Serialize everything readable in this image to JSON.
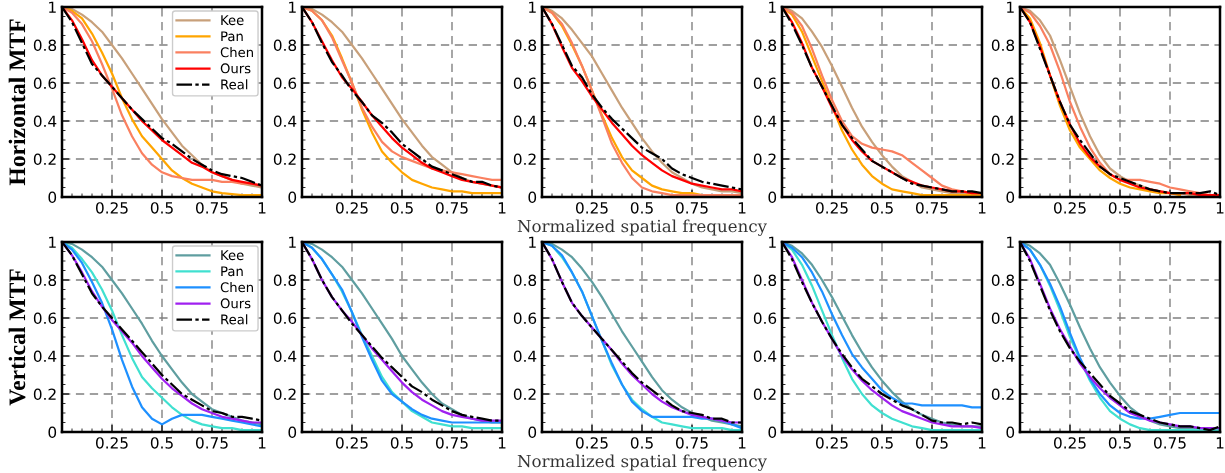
{
  "chart_data": [
    {
      "type": "line",
      "ylabel": "Horizontal MTF",
      "legend": "top right",
      "grid": true,
      "xlim": [
        0,
        1
      ],
      "ylim": [
        0,
        1
      ],
      "xticks": [
        0.25,
        0.5,
        0.75,
        1
      ],
      "yticks": [
        0,
        0.2,
        0.4,
        0.6,
        0.8,
        1
      ],
      "x": [
        0,
        0.05,
        0.1,
        0.15,
        0.2,
        0.25,
        0.3,
        0.35,
        0.4,
        0.45,
        0.5,
        0.55,
        0.6,
        0.65,
        0.7,
        0.75,
        0.8,
        0.85,
        0.9,
        0.95,
        1
      ],
      "series": [
        {
          "name": "Kee",
          "color": "#c8a07a",
          "values": [
            1,
            0.99,
            0.96,
            0.92,
            0.87,
            0.8,
            0.73,
            0.65,
            0.57,
            0.49,
            0.41,
            0.34,
            0.27,
            0.22,
            0.17,
            0.13,
            0.11,
            0.09,
            0.07,
            0.06,
            0.05
          ]
        },
        {
          "name": "Pan",
          "color": "#ffa500",
          "values": [
            1,
            0.98,
            0.94,
            0.86,
            0.76,
            0.65,
            0.52,
            0.41,
            0.32,
            0.26,
            0.2,
            0.14,
            0.1,
            0.07,
            0.05,
            0.03,
            0.02,
            0.015,
            0.01,
            0.01,
            0.01
          ]
        },
        {
          "name": "Chen",
          "color": "#fa8060",
          "values": [
            1,
            0.97,
            0.91,
            0.82,
            0.7,
            0.57,
            0.43,
            0.32,
            0.23,
            0.17,
            0.13,
            0.11,
            0.1,
            0.09,
            0.09,
            0.09,
            0.08,
            0.08,
            0.07,
            0.07,
            0.06
          ]
        },
        {
          "name": "Ours",
          "color": "#ff0000",
          "values": [
            1,
            0.93,
            0.83,
            0.72,
            0.64,
            0.58,
            0.52,
            0.46,
            0.4,
            0.35,
            0.3,
            0.26,
            0.22,
            0.18,
            0.16,
            0.13,
            0.11,
            0.09,
            0.08,
            0.07,
            0.06
          ]
        },
        {
          "name": "Real",
          "color": "#000000",
          "line_style": "dashed",
          "values": [
            1,
            0.92,
            0.81,
            0.7,
            0.64,
            0.58,
            0.52,
            0.46,
            0.41,
            0.36,
            0.31,
            0.28,
            0.24,
            0.2,
            0.17,
            0.14,
            0.12,
            0.11,
            0.1,
            0.08,
            0.06
          ]
        }
      ]
    },
    {
      "type": "line",
      "grid": true,
      "xlim": [
        0,
        1
      ],
      "ylim": [
        0,
        1
      ],
      "xticks": [
        0.25,
        0.5,
        0.75,
        1
      ],
      "yticks": [
        0,
        0.2,
        0.4,
        0.6,
        0.8,
        1
      ],
      "x": [
        0,
        0.05,
        0.1,
        0.15,
        0.2,
        0.25,
        0.3,
        0.35,
        0.4,
        0.45,
        0.5,
        0.55,
        0.6,
        0.65,
        0.7,
        0.75,
        0.8,
        0.85,
        0.9,
        0.95,
        1
      ],
      "series": [
        {
          "color": "#c8a07a",
          "values": [
            1,
            0.99,
            0.96,
            0.92,
            0.87,
            0.8,
            0.73,
            0.65,
            0.57,
            0.49,
            0.41,
            0.34,
            0.27,
            0.21,
            0.17,
            0.13,
            0.1,
            0.08,
            0.07,
            0.06,
            0.05
          ]
        },
        {
          "color": "#ffa500",
          "values": [
            1,
            0.98,
            0.93,
            0.85,
            0.73,
            0.6,
            0.46,
            0.34,
            0.24,
            0.18,
            0.13,
            0.09,
            0.07,
            0.05,
            0.04,
            0.03,
            0.03,
            0.02,
            0.02,
            0.02,
            0.02
          ]
        },
        {
          "color": "#fa8060",
          "values": [
            1,
            0.98,
            0.93,
            0.84,
            0.72,
            0.6,
            0.47,
            0.37,
            0.29,
            0.24,
            0.21,
            0.19,
            0.17,
            0.15,
            0.14,
            0.13,
            0.12,
            0.11,
            0.1,
            0.09,
            0.09
          ]
        },
        {
          "color": "#ff0000",
          "values": [
            1,
            0.92,
            0.82,
            0.72,
            0.63,
            0.57,
            0.5,
            0.43,
            0.37,
            0.31,
            0.26,
            0.22,
            0.18,
            0.15,
            0.13,
            0.11,
            0.09,
            0.08,
            0.07,
            0.06,
            0.05
          ]
        },
        {
          "color": "#000000",
          "line_style": "dashed",
          "values": [
            1,
            0.92,
            0.81,
            0.71,
            0.64,
            0.56,
            0.5,
            0.43,
            0.39,
            0.34,
            0.28,
            0.24,
            0.2,
            0.16,
            0.14,
            0.12,
            0.1,
            0.08,
            0.08,
            0.06,
            0.05
          ]
        }
      ]
    },
    {
      "type": "line",
      "xlabel": "Normalized spatial frequency",
      "grid": true,
      "xlim": [
        0,
        1
      ],
      "ylim": [
        0,
        1
      ],
      "xticks": [
        0.25,
        0.5,
        0.75,
        1
      ],
      "yticks": [
        0,
        0.2,
        0.4,
        0.6,
        0.8,
        1
      ],
      "x": [
        0,
        0.05,
        0.1,
        0.15,
        0.2,
        0.25,
        0.3,
        0.35,
        0.4,
        0.45,
        0.5,
        0.55,
        0.6,
        0.65,
        0.7,
        0.75,
        0.8,
        0.85,
        0.9,
        0.95,
        1
      ],
      "series": [
        {
          "color": "#c8a07a",
          "values": [
            1,
            0.98,
            0.94,
            0.88,
            0.81,
            0.74,
            0.65,
            0.56,
            0.47,
            0.39,
            0.31,
            0.24,
            0.18,
            0.13,
            0.1,
            0.07,
            0.05,
            0.04,
            0.03,
            0.03,
            0.02
          ]
        },
        {
          "color": "#ffa500",
          "values": [
            1,
            0.97,
            0.9,
            0.8,
            0.69,
            0.56,
            0.43,
            0.31,
            0.21,
            0.14,
            0.1,
            0.06,
            0.04,
            0.03,
            0.02,
            0.02,
            0.01,
            0.01,
            null,
            null,
            null
          ]
        },
        {
          "color": "#fa8060",
          "values": [
            1,
            0.97,
            0.91,
            0.81,
            0.69,
            0.56,
            0.42,
            0.28,
            0.18,
            0.1,
            0.05,
            0.03,
            0.02,
            0.01,
            0.01,
            0.01,
            0.01,
            0.01,
            0.01,
            0.01,
            0.01
          ]
        },
        {
          "color": "#ff0000",
          "values": [
            1,
            0.91,
            0.79,
            0.68,
            0.61,
            0.53,
            0.46,
            0.39,
            0.33,
            0.27,
            0.22,
            0.18,
            0.14,
            0.11,
            0.09,
            0.07,
            0.06,
            0.05,
            0.04,
            0.04,
            0.03
          ]
        },
        {
          "color": "#000000",
          "line_style": "dashed",
          "values": [
            1,
            0.91,
            0.8,
            0.69,
            0.63,
            0.54,
            0.47,
            0.41,
            0.36,
            0.31,
            0.26,
            0.23,
            0.2,
            0.15,
            0.12,
            0.1,
            0.08,
            0.07,
            0.06,
            0.05,
            0.04
          ]
        }
      ]
    },
    {
      "type": "line",
      "grid": true,
      "xlim": [
        0,
        1
      ],
      "ylim": [
        0,
        1
      ],
      "xticks": [
        0.25,
        0.5,
        0.75,
        1
      ],
      "yticks": [
        0,
        0.2,
        0.4,
        0.6,
        0.8,
        1
      ],
      "x": [
        0,
        0.05,
        0.1,
        0.15,
        0.2,
        0.25,
        0.3,
        0.35,
        0.4,
        0.45,
        0.5,
        0.55,
        0.6,
        0.65,
        0.7,
        0.75,
        0.8,
        0.85,
        0.9,
        0.95,
        1
      ],
      "series": [
        {
          "color": "#c8a07a",
          "values": [
            1,
            0.98,
            0.94,
            0.87,
            0.79,
            0.69,
            0.58,
            0.47,
            0.37,
            0.29,
            0.22,
            0.16,
            0.11,
            0.08,
            0.05,
            0.04,
            0.03,
            0.02,
            0.02,
            0.02,
            0.01
          ]
        },
        {
          "color": "#ffa500",
          "values": [
            1,
            0.96,
            0.87,
            0.74,
            0.61,
            0.48,
            0.35,
            0.25,
            0.17,
            0.11,
            0.07,
            0.04,
            0.03,
            0.02,
            0.01,
            0.01,
            0.01,
            0.01,
            0.01,
            0.01,
            0.01
          ]
        },
        {
          "color": "#fa8060",
          "values": [
            1,
            0.97,
            0.9,
            0.78,
            0.64,
            0.51,
            0.4,
            0.32,
            0.28,
            0.26,
            0.25,
            0.24,
            0.22,
            0.18,
            0.14,
            0.1,
            0.06,
            0.04,
            0.03,
            0.02,
            0.02
          ]
        },
        {
          "color": "#ff0000",
          "values": [
            1,
            0.92,
            0.81,
            0.68,
            0.58,
            0.47,
            0.38,
            0.3,
            0.24,
            0.19,
            0.16,
            0.13,
            0.1,
            0.08,
            0.06,
            0.05,
            0.04,
            0.03,
            0.03,
            0.02,
            0.02
          ]
        },
        {
          "color": "#000000",
          "line_style": "dashed",
          "values": [
            1,
            0.91,
            0.8,
            0.68,
            0.58,
            0.48,
            0.38,
            0.31,
            0.25,
            0.19,
            0.16,
            0.13,
            0.1,
            0.07,
            0.06,
            0.05,
            0.04,
            0.03,
            0.03,
            0.03,
            0.02
          ]
        }
      ]
    },
    {
      "type": "line",
      "grid": true,
      "xlim": [
        0,
        1
      ],
      "ylim": [
        0,
        1
      ],
      "xticks": [
        0.25,
        0.5,
        0.75,
        1
      ],
      "yticks": [
        0,
        0.2,
        0.4,
        0.6,
        0.8,
        1
      ],
      "x": [
        0,
        0.05,
        0.1,
        0.15,
        0.2,
        0.25,
        0.3,
        0.35,
        0.4,
        0.45,
        0.5,
        0.55,
        0.6,
        0.65,
        0.7,
        0.75,
        0.8,
        0.85,
        0.9,
        0.95,
        1
      ],
      "series": [
        {
          "color": "#c8a07a",
          "values": [
            1,
            0.98,
            0.93,
            0.85,
            0.72,
            0.58,
            0.44,
            0.32,
            0.22,
            0.15,
            0.11,
            0.08,
            0.06,
            0.04,
            0.03,
            0.02,
            0.02,
            0.01,
            0.01,
            0.01,
            0.01
          ]
        },
        {
          "color": "#ffa500",
          "values": [
            1,
            0.94,
            0.81,
            0.64,
            0.48,
            0.35,
            0.26,
            0.2,
            0.14,
            0.1,
            0.07,
            0.05,
            0.04,
            0.03,
            0.02,
            0.02,
            0.01,
            null,
            null,
            null,
            null
          ]
        },
        {
          "color": "#fa8060",
          "values": [
            1,
            0.97,
            0.9,
            0.8,
            0.66,
            0.5,
            0.37,
            0.26,
            0.18,
            0.12,
            0.09,
            0.09,
            0.09,
            0.08,
            0.07,
            0.05,
            0.04,
            0.03,
            0.02,
            0.01,
            0.01
          ]
        },
        {
          "color": "#ff0000",
          "values": [
            1,
            0.92,
            0.79,
            0.64,
            0.5,
            0.38,
            0.28,
            0.21,
            0.16,
            0.12,
            0.09,
            0.07,
            0.05,
            0.04,
            0.03,
            0.02,
            0.02,
            0.02,
            0.01,
            0.01,
            0.01
          ]
        },
        {
          "color": "#000000",
          "line_style": "dashed",
          "values": [
            1,
            0.92,
            0.78,
            0.64,
            0.5,
            0.38,
            0.3,
            0.23,
            0.16,
            0.12,
            0.1,
            0.08,
            0.06,
            0.04,
            0.03,
            0.02,
            0.02,
            0.02,
            0.02,
            0.03,
            0.01
          ]
        }
      ]
    },
    {
      "type": "line",
      "ylabel": "Vertical MTF",
      "legend": "top right",
      "grid": true,
      "xlim": [
        0,
        1
      ],
      "ylim": [
        0,
        1
      ],
      "xticks": [
        0.25,
        0.5,
        0.75,
        1
      ],
      "yticks": [
        0,
        0.2,
        0.4,
        0.6,
        0.8,
        1
      ],
      "x": [
        0,
        0.05,
        0.1,
        0.15,
        0.2,
        0.25,
        0.3,
        0.35,
        0.4,
        0.45,
        0.5,
        0.55,
        0.6,
        0.65,
        0.7,
        0.75,
        0.8,
        0.85,
        0.9,
        0.95,
        1
      ],
      "series": [
        {
          "name": "Kee",
          "color": "#5f9ea0",
          "values": [
            1,
            0.99,
            0.96,
            0.92,
            0.87,
            0.8,
            0.73,
            0.65,
            0.57,
            0.48,
            0.4,
            0.33,
            0.26,
            0.2,
            0.16,
            0.12,
            0.1,
            0.08,
            0.06,
            0.05,
            0.04
          ]
        },
        {
          "name": "Pan",
          "color": "#40e0d0",
          "values": [
            1,
            0.97,
            0.91,
            0.84,
            0.75,
            0.64,
            0.51,
            0.39,
            0.29,
            0.23,
            0.18,
            0.13,
            0.09,
            0.06,
            0.04,
            0.03,
            0.02,
            0.02,
            0.01,
            0.01,
            0.01
          ]
        },
        {
          "name": "Chen",
          "color": "#1e90ff",
          "values": [
            1,
            0.96,
            0.89,
            0.79,
            0.68,
            0.54,
            0.38,
            0.24,
            0.13,
            0.07,
            0.04,
            0.07,
            0.09,
            0.09,
            0.09,
            0.08,
            0.07,
            0.06,
            0.05,
            0.04,
            0.03
          ]
        },
        {
          "name": "Ours",
          "color": "#a020f0",
          "values": [
            1,
            0.93,
            0.84,
            0.74,
            0.66,
            0.59,
            0.53,
            0.47,
            0.4,
            0.34,
            0.28,
            0.23,
            0.19,
            0.15,
            0.12,
            0.1,
            0.08,
            0.07,
            0.06,
            0.05,
            0.05
          ]
        },
        {
          "name": "Real",
          "color": "#000000",
          "line_style": "dashed",
          "values": [
            1,
            0.93,
            0.83,
            0.73,
            0.66,
            0.6,
            0.54,
            0.48,
            0.42,
            0.36,
            0.3,
            0.25,
            0.2,
            0.17,
            0.14,
            0.11,
            0.1,
            0.08,
            0.08,
            0.07,
            0.06
          ]
        }
      ]
    },
    {
      "type": "line",
      "grid": true,
      "xlim": [
        0,
        1
      ],
      "ylim": [
        0,
        1
      ],
      "xticks": [
        0.25,
        0.5,
        0.75,
        1
      ],
      "yticks": [
        0,
        0.2,
        0.4,
        0.6,
        0.8,
        1
      ],
      "x": [
        0,
        0.05,
        0.1,
        0.15,
        0.2,
        0.25,
        0.3,
        0.35,
        0.4,
        0.45,
        0.5,
        0.55,
        0.6,
        0.65,
        0.7,
        0.75,
        0.8,
        0.85,
        0.9,
        0.95,
        1
      ],
      "series": [
        {
          "color": "#5f9ea0",
          "values": [
            1,
            0.99,
            0.96,
            0.92,
            0.87,
            0.8,
            0.73,
            0.65,
            0.57,
            0.49,
            0.4,
            0.33,
            0.26,
            0.2,
            0.15,
            0.12,
            0.09,
            0.07,
            0.06,
            0.05,
            0.05
          ]
        },
        {
          "color": "#40e0d0",
          "values": [
            1,
            0.97,
            0.91,
            0.83,
            0.74,
            0.63,
            0.51,
            0.4,
            0.29,
            0.21,
            0.16,
            0.11,
            0.08,
            0.05,
            0.04,
            0.03,
            0.03,
            0.02,
            0.02,
            0.02,
            0.02
          ]
        },
        {
          "color": "#1e90ff",
          "values": [
            1,
            0.97,
            0.91,
            0.83,
            0.75,
            0.63,
            0.5,
            0.38,
            0.27,
            0.2,
            0.16,
            0.12,
            0.09,
            0.07,
            0.06,
            0.05,
            0.05,
            0.05,
            0.05,
            0.05,
            0.05
          ]
        },
        {
          "color": "#a020f0",
          "values": [
            1,
            0.91,
            0.8,
            0.71,
            0.64,
            0.58,
            0.51,
            0.44,
            0.38,
            0.32,
            0.26,
            0.21,
            0.17,
            0.14,
            0.11,
            0.09,
            0.08,
            0.07,
            0.06,
            0.06,
            0.06
          ]
        },
        {
          "color": "#000000",
          "line_style": "dashed",
          "values": [
            1,
            0.91,
            0.8,
            0.71,
            0.64,
            0.57,
            0.51,
            0.45,
            0.39,
            0.34,
            0.29,
            0.24,
            0.21,
            0.17,
            0.14,
            0.11,
            0.09,
            0.08,
            0.07,
            0.06,
            0.06
          ]
        }
      ]
    },
    {
      "type": "line",
      "xlabel": "Normalized spatial frequency",
      "grid": true,
      "xlim": [
        0,
        1
      ],
      "ylim": [
        0,
        1
      ],
      "xticks": [
        0.25,
        0.5,
        0.75,
        1
      ],
      "yticks": [
        0,
        0.2,
        0.4,
        0.6,
        0.8,
        1
      ],
      "x": [
        0,
        0.05,
        0.1,
        0.15,
        0.2,
        0.25,
        0.3,
        0.35,
        0.4,
        0.45,
        0.5,
        0.55,
        0.6,
        0.65,
        0.7,
        0.75,
        0.8,
        0.85,
        0.9,
        0.95,
        1
      ],
      "series": [
        {
          "color": "#5f9ea0",
          "values": [
            1,
            0.99,
            0.96,
            0.92,
            0.86,
            0.79,
            0.71,
            0.62,
            0.53,
            0.45,
            0.37,
            0.29,
            0.22,
            0.17,
            0.13,
            0.1,
            0.08,
            0.06,
            0.05,
            0.04,
            0.03
          ]
        },
        {
          "color": "#40e0d0",
          "values": [
            1,
            0.98,
            0.92,
            0.84,
            0.74,
            0.61,
            0.48,
            0.35,
            0.25,
            0.17,
            0.12,
            0.08,
            0.05,
            0.04,
            0.03,
            0.02,
            0.02,
            0.02,
            0.02,
            0.01,
            0.01
          ]
        },
        {
          "color": "#1e90ff",
          "values": [
            1,
            0.98,
            0.93,
            0.84,
            0.74,
            0.61,
            0.48,
            0.36,
            0.25,
            0.16,
            0.11,
            0.08,
            0.08,
            0.08,
            0.08,
            0.08,
            0.07,
            0.07,
            0.06,
            0.04,
            0.02
          ]
        },
        {
          "color": "#a020f0",
          "values": [
            1,
            0.91,
            0.79,
            0.68,
            0.61,
            0.55,
            0.49,
            0.43,
            0.36,
            0.3,
            0.25,
            0.2,
            0.16,
            0.13,
            0.11,
            0.09,
            0.08,
            0.07,
            0.06,
            0.05,
            0.05
          ]
        },
        {
          "color": "#000000",
          "line_style": "dashed",
          "values": [
            1,
            0.91,
            0.79,
            0.68,
            0.61,
            0.55,
            0.49,
            0.43,
            0.37,
            0.31,
            0.26,
            0.22,
            0.18,
            0.14,
            0.11,
            0.1,
            0.09,
            0.07,
            0.07,
            0.05,
            0.05
          ]
        }
      ]
    },
    {
      "type": "line",
      "grid": true,
      "xlim": [
        0,
        1
      ],
      "ylim": [
        0,
        1
      ],
      "xticks": [
        0.25,
        0.5,
        0.75,
        1
      ],
      "yticks": [
        0,
        0.2,
        0.4,
        0.6,
        0.8,
        1
      ],
      "x": [
        0,
        0.05,
        0.1,
        0.15,
        0.2,
        0.25,
        0.3,
        0.35,
        0.4,
        0.45,
        0.5,
        0.55,
        0.6,
        0.65,
        0.7,
        0.75,
        0.8,
        0.85,
        0.9,
        0.95,
        1
      ],
      "series": [
        {
          "color": "#5f9ea0",
          "values": [
            1,
            0.98,
            0.94,
            0.88,
            0.8,
            0.71,
            0.61,
            0.51,
            0.42,
            0.34,
            0.27,
            0.21,
            0.16,
            0.12,
            0.09,
            0.07,
            0.05,
            0.04,
            0.03,
            0.03,
            0.03
          ]
        },
        {
          "color": "#40e0d0",
          "values": [
            1,
            0.96,
            0.88,
            0.77,
            0.64,
            0.51,
            0.39,
            0.28,
            0.2,
            0.14,
            0.1,
            0.07,
            0.05,
            0.03,
            0.02,
            0.01,
            0.01,
            0.01,
            0.01,
            0.01,
            0.01
          ]
        },
        {
          "color": "#1e90ff",
          "values": [
            1,
            0.97,
            0.92,
            0.84,
            0.74,
            0.62,
            0.51,
            0.41,
            0.34,
            0.28,
            0.22,
            0.18,
            0.15,
            0.15,
            0.14,
            0.14,
            0.14,
            0.14,
            0.14,
            0.13,
            0.13
          ]
        },
        {
          "color": "#a020f0",
          "values": [
            1,
            0.92,
            0.8,
            0.68,
            0.58,
            0.49,
            0.4,
            0.33,
            0.27,
            0.22,
            0.18,
            0.14,
            0.11,
            0.09,
            0.07,
            0.05,
            0.04,
            0.03,
            0.03,
            0.03,
            0.02
          ]
        },
        {
          "color": "#000000",
          "line_style": "dashed",
          "values": [
            1,
            0.91,
            0.79,
            0.68,
            0.58,
            0.49,
            0.41,
            0.34,
            0.28,
            0.24,
            0.2,
            0.17,
            0.14,
            0.12,
            0.09,
            0.06,
            0.05,
            0.05,
            0.04,
            0.05,
            0.04
          ]
        }
      ]
    },
    {
      "type": "line",
      "grid": true,
      "xlim": [
        0,
        1
      ],
      "ylim": [
        0,
        1
      ],
      "xticks": [
        0.25,
        0.5,
        0.75,
        1
      ],
      "yticks": [
        0,
        0.2,
        0.4,
        0.6,
        0.8,
        1
      ],
      "x": [
        0,
        0.05,
        0.1,
        0.15,
        0.2,
        0.25,
        0.3,
        0.35,
        0.4,
        0.45,
        0.5,
        0.55,
        0.6,
        0.65,
        0.7,
        0.75,
        0.8,
        0.85,
        0.9,
        0.95,
        1
      ],
      "series": [
        {
          "color": "#5f9ea0",
          "values": [
            1,
            0.98,
            0.94,
            0.88,
            0.78,
            0.67,
            0.55,
            0.44,
            0.34,
            0.26,
            0.19,
            0.13,
            0.09,
            0.06,
            0.04,
            0.03,
            0.02,
            0.02,
            0.01,
            0.01,
            0.01
          ]
        },
        {
          "color": "#40e0d0",
          "values": [
            1,
            0.96,
            0.88,
            0.77,
            0.64,
            0.5,
            0.38,
            0.27,
            0.18,
            0.11,
            0.07,
            0.04,
            0.02,
            0.01,
            0.01,
            0.01,
            0.01,
            0.01,
            0.01,
            0.01,
            0.01
          ]
        },
        {
          "color": "#1e90ff",
          "values": [
            1,
            0.96,
            0.88,
            0.78,
            0.66,
            0.52,
            0.39,
            0.28,
            0.2,
            0.14,
            0.1,
            0.08,
            0.07,
            0.07,
            0.08,
            0.09,
            0.1,
            0.1,
            0.1,
            0.1,
            0.1
          ]
        },
        {
          "color": "#a020f0",
          "values": [
            1,
            0.91,
            0.78,
            0.65,
            0.54,
            0.45,
            0.36,
            0.29,
            0.23,
            0.18,
            0.14,
            0.1,
            0.08,
            0.06,
            0.05,
            0.04,
            0.03,
            0.03,
            0.02,
            0.02,
            0.02
          ]
        },
        {
          "color": "#000000",
          "line_style": "dashed",
          "values": [
            1,
            0.9,
            0.77,
            0.64,
            0.53,
            0.44,
            0.37,
            0.31,
            0.25,
            0.19,
            0.15,
            0.11,
            0.09,
            0.07,
            0.05,
            0.04,
            0.03,
            0.03,
            0.02,
            0.01,
            0.03
          ]
        }
      ]
    }
  ]
}
